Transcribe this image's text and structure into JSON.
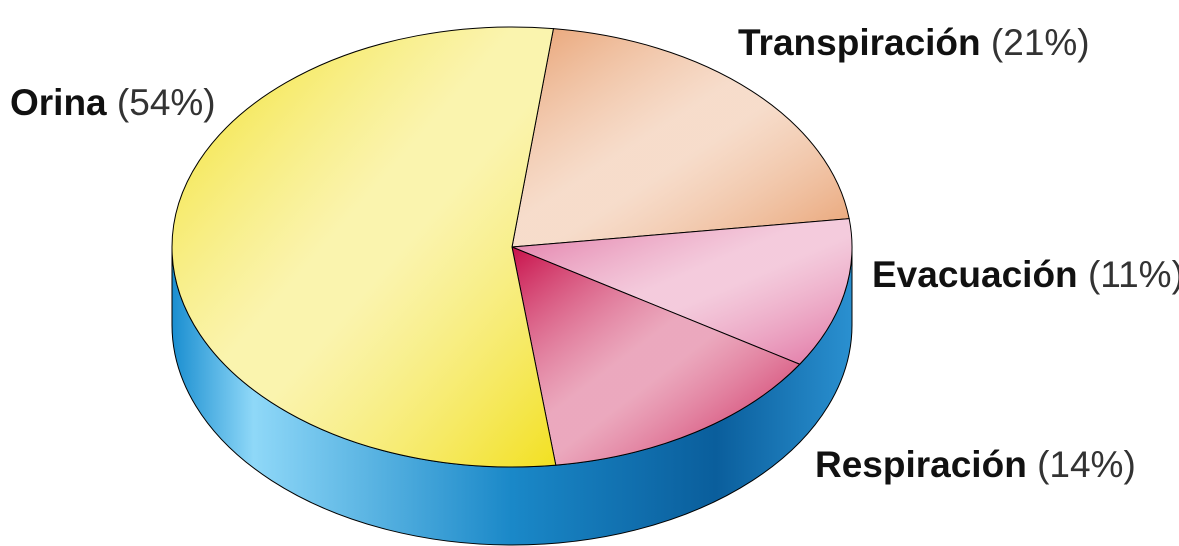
{
  "chart_data": {
    "type": "pie",
    "categories": [
      "Transpiración",
      "Evacuación",
      "Respiración",
      "Orina"
    ],
    "values": [
      21,
      11,
      14,
      54
    ],
    "value_labels": [
      "(21%)",
      "(11%)",
      "(14%)",
      "(54%)"
    ],
    "colors": [
      "#e8a070",
      "#e070a0",
      "#c8104a",
      "#f2e020"
    ]
  }
}
